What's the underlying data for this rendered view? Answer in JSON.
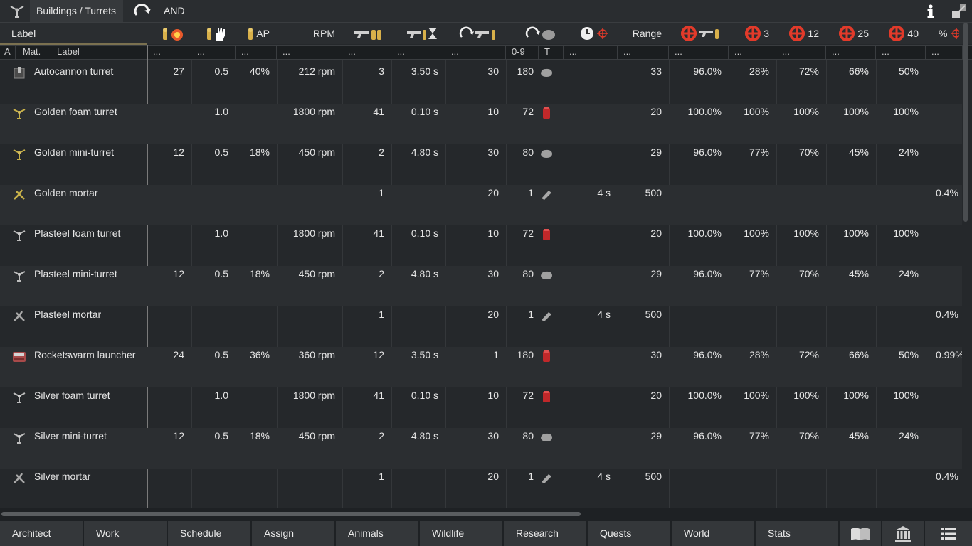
{
  "topbar": {
    "breadcrumb": "Buildings / Turrets",
    "filter_mode": "AND",
    "icons": [
      "turret-icon",
      "refresh-icon",
      "info-icon",
      "minimize-icon"
    ]
  },
  "headers": {
    "label": "Label",
    "ap": "AP",
    "rpm": "RPM",
    "range": "Range",
    "acc3": "3",
    "acc12": "12",
    "acc25": "25",
    "acc40": "40",
    "pct": "%"
  },
  "subheaders": {
    "a": "A",
    "mat": "Mat.",
    "label": "Label",
    "dots": "...",
    "proj_range": "0-9",
    "proj_type": "T"
  },
  "rows": [
    {
      "name": "Autocannon turret",
      "dmg": "27",
      "stop": "0.5",
      "ap": "40%",
      "rpm": "212 rpm",
      "burst": "3",
      "warm": "3.50 s",
      "cool": "30",
      "proj": "180",
      "ptype": "rock",
      "time": "",
      "range": "33",
      "acc": "96.0%",
      "a3": "28%",
      "a12": "72%",
      "a25": "66%",
      "a40": "50%",
      "pct": "",
      "icon": "autocannon"
    },
    {
      "name": "Golden foam turret",
      "dmg": "",
      "stop": "1.0",
      "ap": "",
      "rpm": "1800 rpm",
      "burst": "41",
      "warm": "0.10 s",
      "cool": "10",
      "proj": "72",
      "ptype": "canister",
      "time": "",
      "range": "20",
      "acc": "100.0%",
      "a3": "100%",
      "a12": "100%",
      "a25": "100%",
      "a40": "100%",
      "pct": "",
      "icon": "gold"
    },
    {
      "name": "Golden mini-turret",
      "dmg": "12",
      "stop": "0.5",
      "ap": "18%",
      "rpm": "450 rpm",
      "burst": "2",
      "warm": "4.80 s",
      "cool": "30",
      "proj": "80",
      "ptype": "rock",
      "time": "",
      "range": "29",
      "acc": "96.0%",
      "a3": "77%",
      "a12": "70%",
      "a25": "45%",
      "a40": "24%",
      "pct": "",
      "icon": "gold"
    },
    {
      "name": "Golden mortar",
      "dmg": "",
      "stop": "",
      "ap": "",
      "rpm": "",
      "burst": "1",
      "warm": "",
      "cool": "20",
      "proj": "1",
      "ptype": "shell",
      "time": "4 s",
      "range": "500",
      "acc": "",
      "a3": "",
      "a12": "",
      "a25": "",
      "a40": "",
      "pct": "0.4%",
      "icon": "mortar-gold"
    },
    {
      "name": "Plasteel foam turret",
      "dmg": "",
      "stop": "1.0",
      "ap": "",
      "rpm": "1800 rpm",
      "burst": "41",
      "warm": "0.10 s",
      "cool": "10",
      "proj": "72",
      "ptype": "canister",
      "time": "",
      "range": "20",
      "acc": "100.0%",
      "a3": "100%",
      "a12": "100%",
      "a25": "100%",
      "a40": "100%",
      "pct": "",
      "icon": "grey"
    },
    {
      "name": "Plasteel mini-turret",
      "dmg": "12",
      "stop": "0.5",
      "ap": "18%",
      "rpm": "450 rpm",
      "burst": "2",
      "warm": "4.80 s",
      "cool": "30",
      "proj": "80",
      "ptype": "rock",
      "time": "",
      "range": "29",
      "acc": "96.0%",
      "a3": "77%",
      "a12": "70%",
      "a25": "45%",
      "a40": "24%",
      "pct": "",
      "icon": "grey"
    },
    {
      "name": "Plasteel mortar",
      "dmg": "",
      "stop": "",
      "ap": "",
      "rpm": "",
      "burst": "1",
      "warm": "",
      "cool": "20",
      "proj": "1",
      "ptype": "shell",
      "time": "4 s",
      "range": "500",
      "acc": "",
      "a3": "",
      "a12": "",
      "a25": "",
      "a40": "",
      "pct": "0.4%",
      "icon": "mortar-grey"
    },
    {
      "name": "Rocketswarm launcher",
      "dmg": "24",
      "stop": "0.5",
      "ap": "36%",
      "rpm": "360 rpm",
      "burst": "12",
      "warm": "3.50 s",
      "cool": "1",
      "proj": "180",
      "ptype": "canister",
      "time": "",
      "range": "30",
      "acc": "96.0%",
      "a3": "28%",
      "a12": "72%",
      "a25": "66%",
      "a40": "50%",
      "pct": "0.99%",
      "icon": "rocket"
    },
    {
      "name": "Silver foam turret",
      "dmg": "",
      "stop": "1.0",
      "ap": "",
      "rpm": "1800 rpm",
      "burst": "41",
      "warm": "0.10 s",
      "cool": "10",
      "proj": "72",
      "ptype": "canister",
      "time": "",
      "range": "20",
      "acc": "100.0%",
      "a3": "100%",
      "a12": "100%",
      "a25": "100%",
      "a40": "100%",
      "pct": "",
      "icon": "grey"
    },
    {
      "name": "Silver mini-turret",
      "dmg": "12",
      "stop": "0.5",
      "ap": "18%",
      "rpm": "450 rpm",
      "burst": "2",
      "warm": "4.80 s",
      "cool": "30",
      "proj": "80",
      "ptype": "rock",
      "time": "",
      "range": "29",
      "acc": "96.0%",
      "a3": "77%",
      "a12": "70%",
      "a25": "45%",
      "a40": "24%",
      "pct": "",
      "icon": "grey"
    },
    {
      "name": "Silver mortar",
      "dmg": "",
      "stop": "",
      "ap": "",
      "rpm": "",
      "burst": "1",
      "warm": "",
      "cool": "20",
      "proj": "1",
      "ptype": "shell",
      "time": "4 s",
      "range": "500",
      "acc": "",
      "a3": "",
      "a12": "",
      "a25": "",
      "a40": "",
      "pct": "0.4%",
      "icon": "mortar-grey"
    }
  ],
  "bottombar": {
    "tabs": [
      "Architect",
      "Work",
      "Schedule",
      "Assign",
      "Animals",
      "Wildlife",
      "Research",
      "Quests",
      "World",
      "Stats"
    ],
    "icon_tabs": [
      "book-icon",
      "history-icon",
      "menu-icon"
    ]
  },
  "colors": {
    "accent_red": "#e23a2a",
    "bullet_gold": "#d8b04a",
    "canister_red": "#c0282a",
    "label_underline": "#7b7150"
  }
}
